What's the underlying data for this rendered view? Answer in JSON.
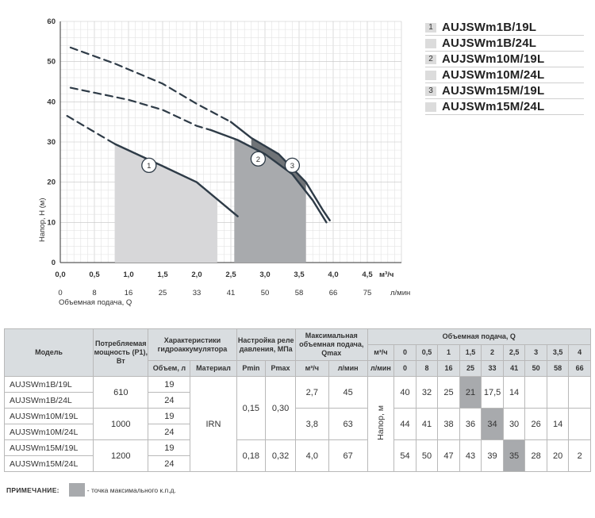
{
  "chart_data": {
    "type": "line",
    "xlabel": "Объемная подача, Q",
    "ylabel": "Напор, Н (м)",
    "x_unit": "м³/ч",
    "x2_unit": "л/мин",
    "xlim": [
      0,
      5
    ],
    "ylim": [
      0,
      60
    ],
    "x_ticks": [
      "0,0",
      "0,5",
      "1,0",
      "1,5",
      "2,0",
      "2,5",
      "3,0",
      "3,5",
      "4,0",
      "4,5"
    ],
    "x2_ticks": [
      "0",
      "8",
      "16",
      "25",
      "33",
      "41",
      "50",
      "58",
      "66",
      "75"
    ],
    "y_ticks": [
      "0",
      "10",
      "20",
      "30",
      "40",
      "50",
      "60"
    ],
    "series": [
      {
        "name": "1",
        "dashed_points": [
          [
            0.1,
            36.5
          ],
          [
            0.6,
            31.5
          ],
          [
            0.8,
            29.5
          ]
        ],
        "solid_points": [
          [
            0.8,
            29.5
          ],
          [
            1.5,
            24
          ],
          [
            2.0,
            20
          ],
          [
            2.6,
            11.5
          ]
        ],
        "efficiency_band": [
          0.8,
          2.3
        ]
      },
      {
        "name": "2",
        "dashed_points": [
          [
            0.15,
            43.5
          ],
          [
            1.0,
            40.5
          ],
          [
            1.5,
            38
          ],
          [
            2.0,
            34
          ],
          [
            2.2,
            33
          ]
        ],
        "solid_points": [
          [
            2.2,
            33
          ],
          [
            2.6,
            30.5
          ],
          [
            3.0,
            27
          ],
          [
            3.4,
            22
          ],
          [
            3.7,
            15.5
          ],
          [
            3.9,
            10
          ]
        ],
        "efficiency_band": [
          2.55,
          3.6
        ]
      },
      {
        "name": "3",
        "dashed_points": [
          [
            0.15,
            53.5
          ],
          [
            0.8,
            49.5
          ],
          [
            1.5,
            44.5
          ],
          [
            2.0,
            39.5
          ],
          [
            2.5,
            35
          ]
        ],
        "solid_points": [
          [
            2.5,
            35
          ],
          [
            2.8,
            31
          ],
          [
            3.2,
            27
          ],
          [
            3.6,
            20
          ],
          [
            3.85,
            13
          ],
          [
            3.95,
            10.5
          ]
        ],
        "efficiency_band": [
          2.8,
          3.6
        ]
      }
    ]
  },
  "legend": [
    {
      "num": "1",
      "name": "AUJSWm1B/19L"
    },
    {
      "num": "",
      "name": "AUJSWm1B/24L"
    },
    {
      "num": "2",
      "name": "AUJSWm10M/19L"
    },
    {
      "num": "",
      "name": "AUJSWm10M/24L"
    },
    {
      "num": "3",
      "name": "AUJSWm15M/19L"
    },
    {
      "num": "",
      "name": "AUJSWm15M/24L"
    }
  ],
  "table": {
    "headers": {
      "model": "Модель",
      "power": "Потребляемая мощность (P1), Вт",
      "accum": "Характеристики гидроаккумулятора",
      "volume": "Объем, л",
      "material": "Материал",
      "relay": "Настройка реле давления, МПа",
      "pmin": "Pmin",
      "pmax": "Pmax",
      "maxflow": "Максимальная объемная подача, Qmax",
      "m3h": "м³/ч",
      "lmin": "л/мин",
      "flow": "Объемная подача, Q",
      "head": "Напор, м"
    },
    "q_m3h": [
      "0",
      "0,5",
      "1",
      "1,5",
      "2",
      "2,5",
      "3",
      "3,5",
      "4"
    ],
    "q_lmin": [
      "0",
      "8",
      "16",
      "25",
      "33",
      "41",
      "50",
      "58",
      "66"
    ],
    "rows": [
      {
        "model": "AUJSWm1B/19L",
        "volume": "19"
      },
      {
        "model": "AUJSWm1B/24L",
        "volume": "24"
      },
      {
        "model": "AUJSWm10M/19L",
        "volume": "19"
      },
      {
        "model": "AUJSWm10M/24L",
        "volume": "24"
      },
      {
        "model": "AUJSWm15M/19L",
        "volume": "19"
      },
      {
        "model": "AUJSWm15M/24L",
        "volume": "24"
      }
    ],
    "groups": [
      {
        "power": "610",
        "qmax_m3h": "2,7",
        "qmax_lmin": "45",
        "heads": [
          "40",
          "32",
          "25",
          "21",
          "17,5",
          "14",
          "",
          "",
          ""
        ],
        "highlight": 3
      },
      {
        "power": "1000",
        "qmax_m3h": "3,8",
        "qmax_lmin": "63",
        "heads": [
          "44",
          "41",
          "38",
          "36",
          "34",
          "30",
          "26",
          "14",
          ""
        ],
        "highlight": 4
      },
      {
        "power": "1200",
        "qmax_m3h": "4,0",
        "qmax_lmin": "67",
        "heads": [
          "54",
          "50",
          "47",
          "43",
          "39",
          "35",
          "28",
          "20",
          "2"
        ],
        "highlight": 5
      }
    ],
    "material": "IRN",
    "relay_a": {
      "pmin": "0,15",
      "pmax": "0,30"
    },
    "relay_b": {
      "pmin": "0,18",
      "pmax": "0,32"
    }
  },
  "note": {
    "label": "ПРИМЕЧАНИЕ:",
    "text": "- точка максимального к.п.д.",
    "color": "#a8aaad"
  }
}
